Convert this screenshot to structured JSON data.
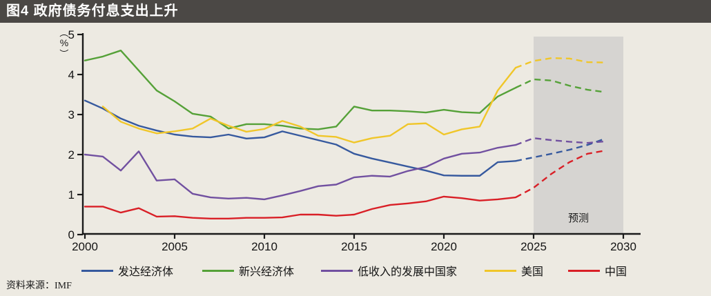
{
  "title_bar": {
    "text": "图4 政府债务付息支出上升"
  },
  "source": {
    "text": "资料来源：IMF"
  },
  "chart_data": {
    "type": "line",
    "title": "图4 政府债务付息支出上升",
    "xlabel": "",
    "ylabel": "（%）",
    "ylabel_parts": [
      "（",
      "%",
      "）"
    ],
    "ylim": [
      0,
      5
    ],
    "xlim": [
      2000,
      2030
    ],
    "grid": false,
    "legend_position": "bottom",
    "y_ticks": [
      "0",
      "1",
      "2",
      "3",
      "4",
      "5"
    ],
    "x_ticks": [
      "2000",
      "2005",
      "2010",
      "2015",
      "2020",
      "2025",
      "2030"
    ],
    "x_tick_years": [
      2000,
      2005,
      2010,
      2015,
      2020,
      2025,
      2030
    ],
    "forecast": {
      "label": "预测",
      "region_start_year": 2025,
      "region_end_year": 2030,
      "region_color": "#d6d4d1",
      "dashed_from_year": 2024
    },
    "years": [
      2000,
      2001,
      2002,
      2003,
      2004,
      2005,
      2006,
      2007,
      2008,
      2009,
      2010,
      2011,
      2012,
      2013,
      2014,
      2015,
      2016,
      2017,
      2018,
      2019,
      2020,
      2021,
      2022,
      2023,
      2024,
      2025,
      2026,
      2027,
      2028,
      2029
    ],
    "series": [
      {
        "name": "发达经济体",
        "color": "#36599e",
        "values": [
          3.35,
          3.15,
          2.9,
          2.72,
          2.6,
          2.5,
          2.45,
          2.43,
          2.5,
          2.4,
          2.43,
          2.58,
          2.47,
          2.36,
          2.25,
          2.02,
          1.9,
          1.8,
          1.7,
          1.6,
          1.48,
          1.47,
          1.47,
          1.81,
          1.84,
          1.93,
          2.02,
          2.12,
          2.24,
          2.4
        ]
      },
      {
        "name": "新兴经济体",
        "color": "#55a138",
        "values": [
          4.35,
          4.45,
          4.6,
          4.1,
          3.6,
          3.33,
          3.02,
          2.95,
          2.65,
          2.76,
          2.76,
          2.72,
          2.65,
          2.63,
          2.7,
          3.2,
          3.1,
          3.1,
          3.08,
          3.05,
          3.12,
          3.06,
          3.04,
          3.45,
          3.67,
          3.88,
          3.85,
          3.72,
          3.62,
          3.56
        ]
      },
      {
        "name": "低收入的发展中国家",
        "color": "#7150a0",
        "values": [
          2.0,
          1.95,
          1.6,
          2.08,
          1.35,
          1.38,
          1.02,
          0.93,
          0.9,
          0.92,
          0.88,
          0.98,
          1.09,
          1.21,
          1.25,
          1.43,
          1.47,
          1.45,
          1.59,
          1.69,
          1.9,
          2.02,
          2.05,
          2.17,
          2.24,
          2.41,
          2.36,
          2.32,
          2.29,
          2.33
        ]
      },
      {
        "name": "美国",
        "color": "#f0c629",
        "values": [
          null,
          3.2,
          2.82,
          2.65,
          2.53,
          2.58,
          2.65,
          2.9,
          2.72,
          2.57,
          2.64,
          2.84,
          2.7,
          2.47,
          2.44,
          2.3,
          2.41,
          2.47,
          2.76,
          2.78,
          2.5,
          2.63,
          2.7,
          3.6,
          4.17,
          4.34,
          4.41,
          4.4,
          4.31,
          4.3
        ]
      },
      {
        "name": "中国",
        "color": "#d91f26",
        "values": [
          0.7,
          0.7,
          0.55,
          0.66,
          0.45,
          0.46,
          0.42,
          0.4,
          0.4,
          0.42,
          0.42,
          0.43,
          0.5,
          0.5,
          0.47,
          0.5,
          0.64,
          0.74,
          0.78,
          0.83,
          0.95,
          0.91,
          0.85,
          0.88,
          0.93,
          1.17,
          1.52,
          1.81,
          2.02,
          2.1
        ]
      }
    ]
  }
}
